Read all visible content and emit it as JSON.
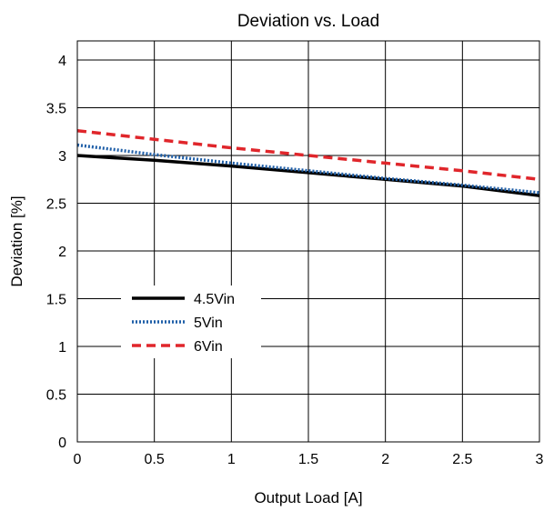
{
  "chart_data": {
    "type": "line",
    "title": "Deviation vs. Load",
    "xlabel": "Output Load [A]",
    "ylabel": "Deviation [%]",
    "xlim": [
      0,
      3
    ],
    "ylim": [
      0,
      4.2
    ],
    "xticks": [
      "0",
      "0.5",
      "1",
      "1.5",
      "2",
      "2.5",
      "3"
    ],
    "yticks": [
      "0",
      "0.5",
      "1",
      "1.5",
      "2",
      "2.5",
      "3",
      "3.5",
      "4"
    ],
    "grid": true,
    "legend_position": "left-middle",
    "series": [
      {
        "name": "4.5Vin",
        "color": "#000000",
        "style": "solid",
        "x": [
          0,
          0.5,
          1,
          1.5,
          2,
          2.5,
          3
        ],
        "y": [
          3.0,
          2.95,
          2.89,
          2.82,
          2.75,
          2.68,
          2.58
        ]
      },
      {
        "name": "5Vin",
        "color": "#1f5fa8",
        "style": "dotted",
        "x": [
          0,
          0.5,
          1,
          1.5,
          2,
          2.5,
          3
        ],
        "y": [
          3.11,
          3.01,
          2.92,
          2.84,
          2.76,
          2.69,
          2.61
        ]
      },
      {
        "name": "6Vin",
        "color": "#e0262b",
        "style": "dashed",
        "x": [
          0,
          0.5,
          1,
          1.5,
          2,
          2.5,
          3
        ],
        "y": [
          3.26,
          3.17,
          3.08,
          3.0,
          2.92,
          2.84,
          2.75
        ]
      }
    ]
  }
}
